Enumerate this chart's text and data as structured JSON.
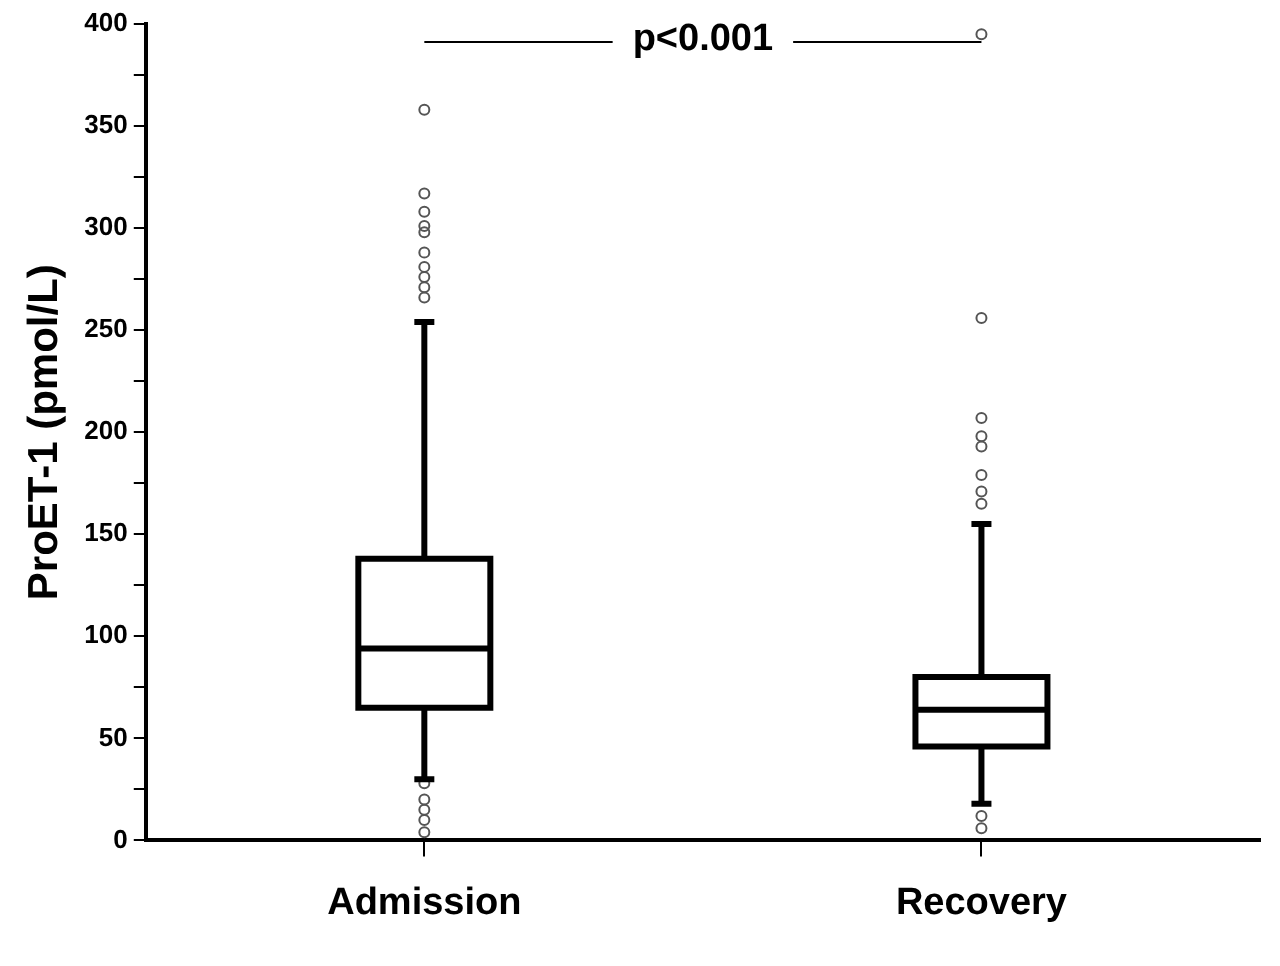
{
  "chart_data": {
    "type": "box",
    "ylabel": "ProET-1 (pmol/L)",
    "categories": [
      "Admission",
      "Recovery"
    ],
    "boxes": [
      {
        "low": 30,
        "q1": 65,
        "median": 94,
        "q3": 138,
        "high": 254,
        "outliers": [
          358,
          317,
          308,
          301,
          298,
          288,
          281,
          276,
          271,
          266,
          28,
          20,
          15,
          10,
          4
        ]
      },
      {
        "low": 18,
        "q1": 46,
        "median": 64,
        "q3": 80,
        "high": 155,
        "outliers": [
          395,
          256,
          207,
          198,
          193,
          179,
          171,
          165,
          12,
          6
        ]
      }
    ],
    "color": "#000000",
    "marker": "circle",
    "ylim": [
      0,
      400
    ],
    "yticks": [
      0,
      {
        "value": 25,
        "label": null
      },
      50,
      {
        "value": 75,
        "label": null
      },
      100,
      {
        "value": 125,
        "label": null
      },
      150,
      {
        "value": 175,
        "label": null
      },
      200,
      {
        "value": 225,
        "label": null
      },
      250,
      {
        "value": 275,
        "label": null
      },
      300,
      {
        "value": 325,
        "label": null
      },
      350,
      {
        "value": 375,
        "label": null
      },
      400
    ],
    "grid": false,
    "annotations": [
      "p<0.001"
    ]
  }
}
